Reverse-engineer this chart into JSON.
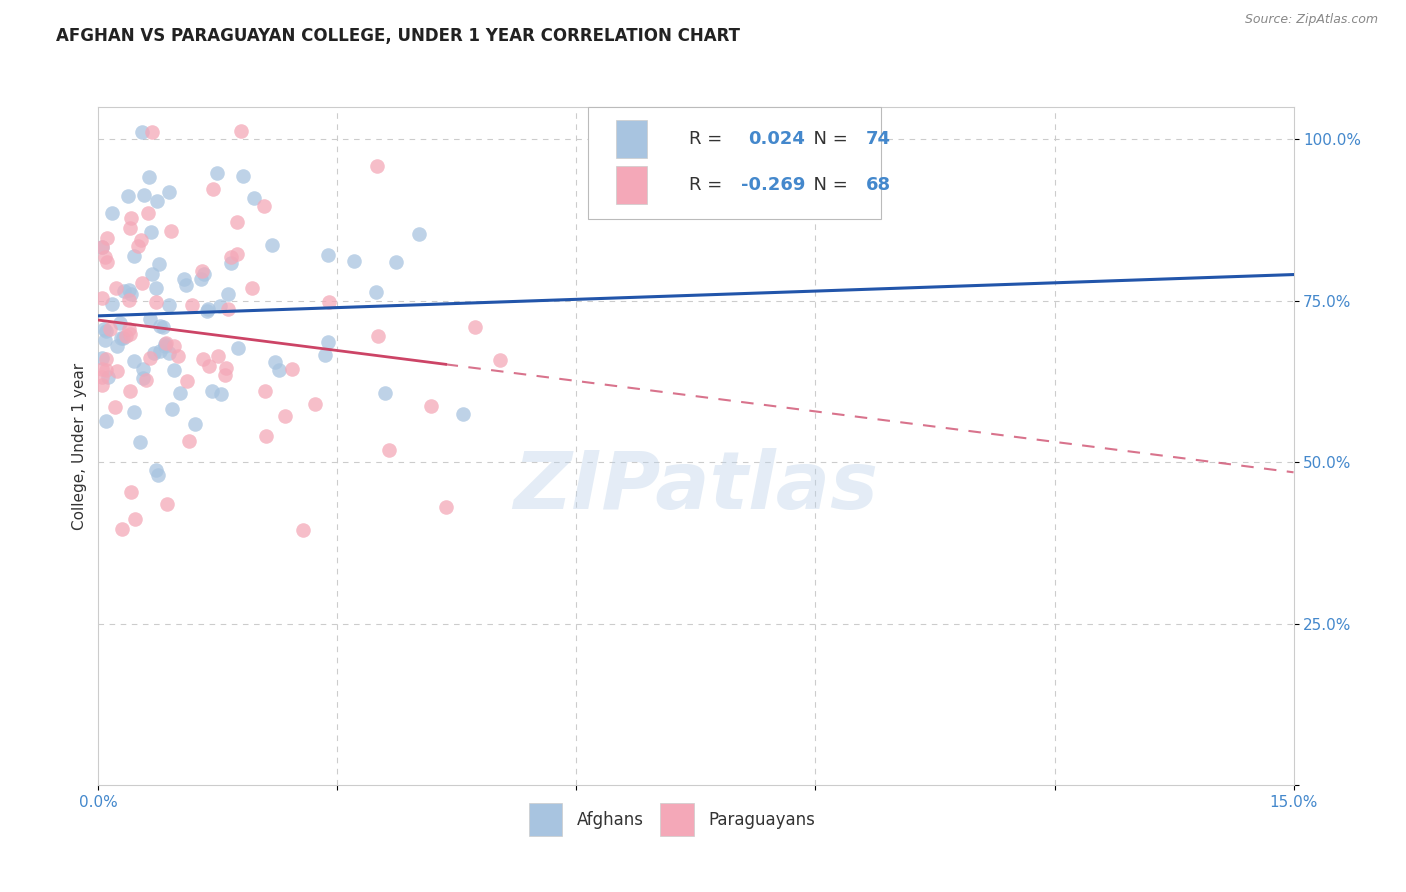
{
  "title": "AFGHAN VS PARAGUAYAN COLLEGE, UNDER 1 YEAR CORRELATION CHART",
  "source": "Source: ZipAtlas.com",
  "ylabel": "College, Under 1 year",
  "xlabel_afghans": "Afghans",
  "xlabel_paraguayans": "Paraguayans",
  "x_min": 0.0,
  "x_max": 0.15,
  "y_min": 0.0,
  "y_max": 1.05,
  "afghan_color": "#a8c4e0",
  "paraguayan_color": "#f4a8b8",
  "afghan_line_color": "#2255aa",
  "paraguayan_line_color": "#cc4466",
  "R_afghan": 0.024,
  "N_afghan": 74,
  "R_paraguayan": -0.269,
  "N_paraguayan": 68,
  "background_color": "#ffffff",
  "grid_color": "#cccccc",
  "watermark": "ZIPatlas",
  "tick_color": "#4488cc",
  "title_color": "#222222",
  "source_color": "#888888",
  "label_color": "#333333"
}
